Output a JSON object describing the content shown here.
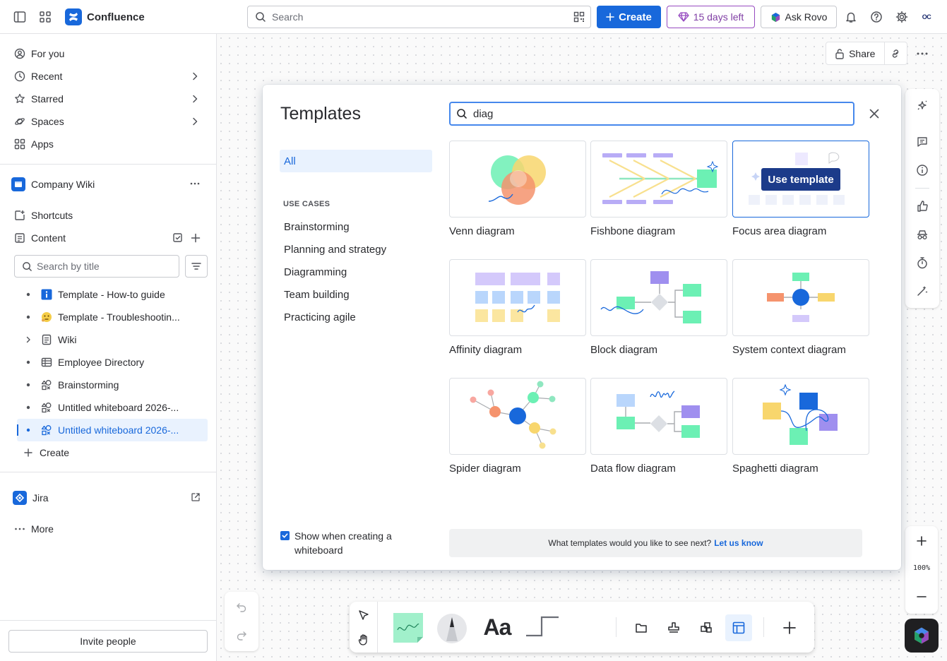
{
  "header": {
    "app_name": "Confluence",
    "search_placeholder": "Search",
    "create_label": "Create",
    "trial_label": "15 days left",
    "rovo_label": "Ask Rovo",
    "avatar_initials": "OC",
    "colors": {
      "primary": "#1868db",
      "trial": "#964ac0"
    }
  },
  "sidebar": {
    "nav": [
      {
        "label": "For you",
        "icon": "user-circle-icon"
      },
      {
        "label": "Recent",
        "icon": "clock-icon"
      },
      {
        "label": "Starred",
        "icon": "star-icon"
      },
      {
        "label": "Spaces",
        "icon": "spaces-icon"
      },
      {
        "label": "Apps",
        "icon": "apps-grid-icon"
      }
    ],
    "space_name": "Company Wiki",
    "shortcuts_label": "Shortcuts",
    "content_label": "Content",
    "search_placeholder": "Search by title",
    "tree": [
      {
        "label": "Template - How-to guide",
        "icon": "info-icon"
      },
      {
        "label": "Template - Troubleshootin...",
        "icon": "emoji-icon"
      },
      {
        "label": "Wiki",
        "icon": "page-icon"
      },
      {
        "label": "Employee Directory",
        "icon": "database-icon"
      },
      {
        "label": "Brainstorming",
        "icon": "whiteboard-icon"
      },
      {
        "label": "Untitled whiteboard 2026-...",
        "icon": "whiteboard-icon"
      },
      {
        "label": "Untitled whiteboard 2026-...",
        "icon": "whiteboard-icon",
        "selected": true
      }
    ],
    "create_label": "Create",
    "jira_label": "Jira",
    "more_label": "More",
    "invite_label": "Invite people"
  },
  "canvas": {
    "share_label": "Share",
    "zoom_level": "100%"
  },
  "modal": {
    "title": "Templates",
    "search_value": "diag",
    "all_label": "All",
    "use_cases_heading": "USE CASES",
    "categories": [
      "Brainstorming",
      "Planning and strategy",
      "Diagramming",
      "Team building",
      "Practicing agile"
    ],
    "templates": [
      {
        "label": "Venn diagram"
      },
      {
        "label": "Fishbone diagram"
      },
      {
        "label": "Focus area diagram"
      },
      {
        "label": "Affinity diagram"
      },
      {
        "label": "Block diagram"
      },
      {
        "label": "System context diagram"
      },
      {
        "label": "Spider diagram"
      },
      {
        "label": "Data flow diagram"
      },
      {
        "label": "Spaghetti diagram"
      }
    ],
    "use_template_label": "Use template",
    "show_checkbox_label": "Show when creating a whiteboard",
    "feedback_text": "What templates would you like to see next?",
    "feedback_link": "Let us know"
  }
}
